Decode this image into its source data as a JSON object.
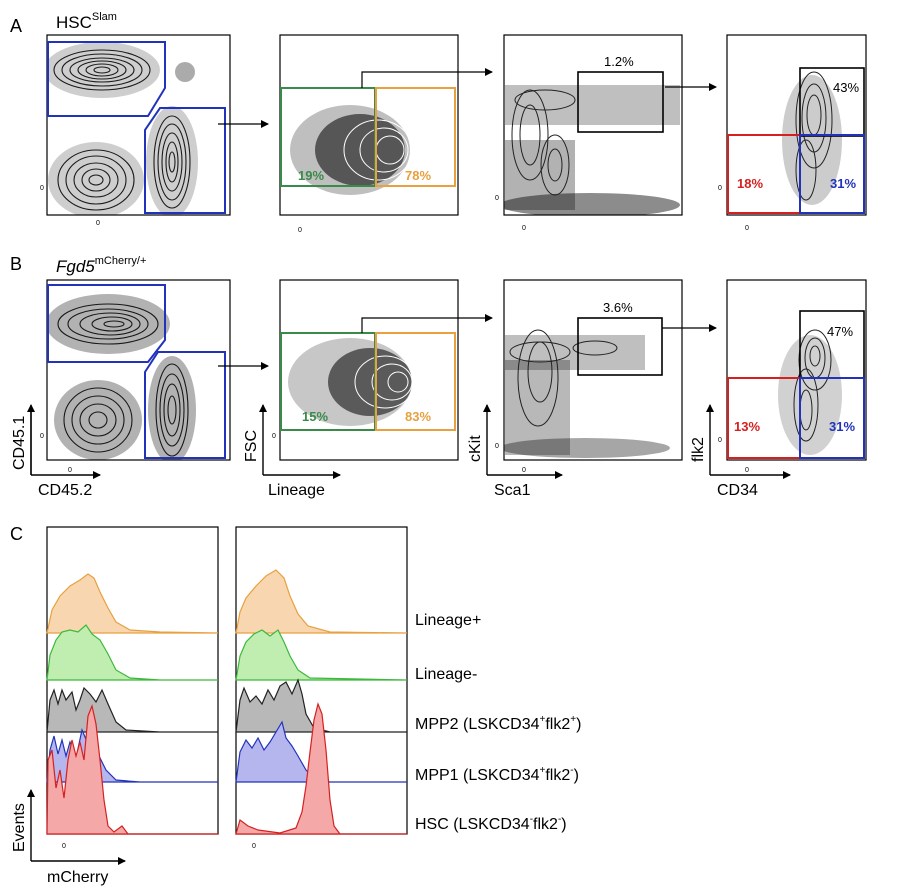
{
  "panels": {
    "a": {
      "letter": "A",
      "heading_main": "HSC",
      "heading_sup": "Slam",
      "gates": {
        "lin_neg": "19%",
        "lin_pos": "78%",
        "lsk": "1.2%",
        "mpp2": "43%",
        "hsc": "18%",
        "mpp1": "31%"
      }
    },
    "b": {
      "letter": "B",
      "heading_main": "Fgd5",
      "heading_sup": "mCherry/+",
      "gates": {
        "lin_neg": "15%",
        "lin_pos": "83%",
        "lsk": "3.6%",
        "mpp2": "47%",
        "hsc": "13%",
        "mpp1": "31%"
      }
    },
    "c": {
      "letter": "C"
    }
  },
  "axes": {
    "p1_y": "CD45.1",
    "p1_x": "CD45.2",
    "p2_y": "FSC",
    "p2_x": "Lineage",
    "p3_y": "cKit",
    "p3_x": "Sca1",
    "p4_y": "flk2",
    "p4_x": "CD34",
    "hist_y": "Events",
    "hist_x": "mCherry",
    "zero": "0"
  },
  "legend": {
    "lineage_pos": "Lineage+",
    "lineage_neg": "Lineage-",
    "mpp2_main": "MPP2 (LSKCD34",
    "mpp2_s1": "+",
    "mpp2_mid": "flk2",
    "mpp2_s2": "+",
    "mpp2_end": ")",
    "mpp1_main": "MPP1 (LSKCD34",
    "mpp1_s1": "+",
    "mpp1_mid": "flk2",
    "mpp1_s2": "-",
    "mpp1_end": ")",
    "hsc_main": "HSC (LSKCD34",
    "hsc_s1": "-",
    "hsc_mid": "flk2",
    "hsc_s2": "-",
    "hsc_end": ")"
  },
  "colors": {
    "gate_blue": "#2233bb",
    "gate_green": "#3a8a4a",
    "gate_orange": "#e8a040",
    "gate_red": "#d62020",
    "lin_pos_fill": "#f8d6b0",
    "lin_neg_fill": "#bfeeb0",
    "mpp2_fill": "#b8b8b8",
    "mpp1_fill": "#b6b6ee",
    "hsc_fill": "#f4a8a8"
  }
}
